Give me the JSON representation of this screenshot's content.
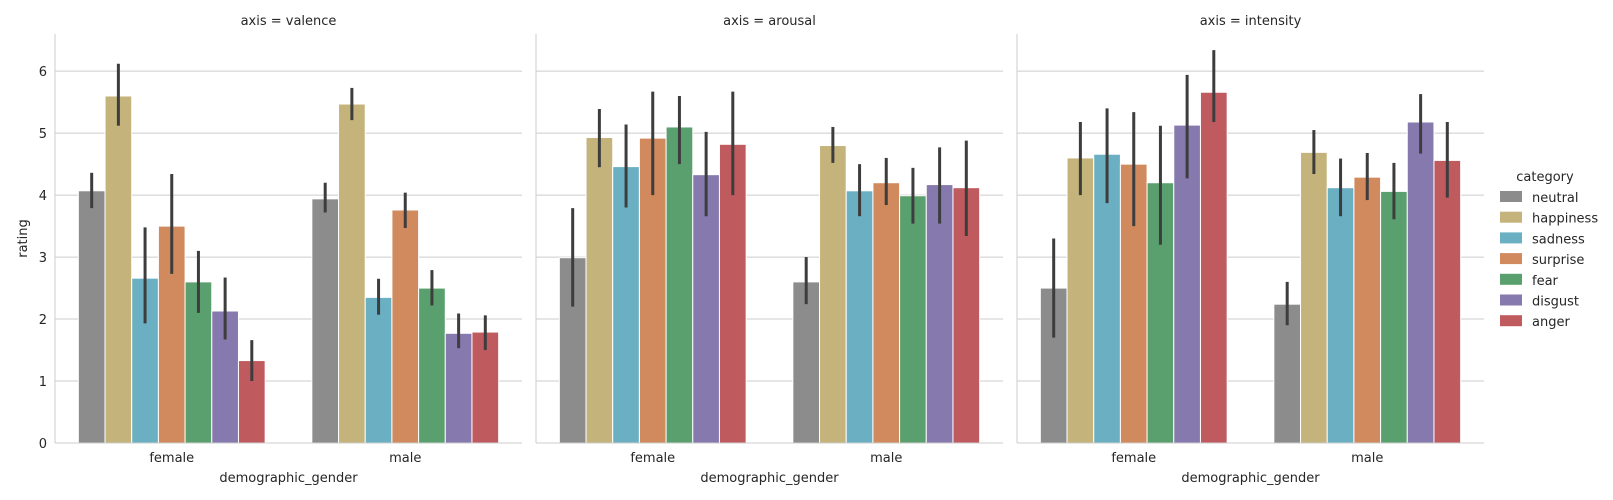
{
  "chart_data": {
    "type": "bar",
    "ylabel": "rating",
    "xlabel": "demographic_gender",
    "ylim": [
      0,
      6.6
    ],
    "yticks": [
      0,
      1,
      2,
      3,
      4,
      5,
      6
    ],
    "grid": "horizontal",
    "categories": [
      "female",
      "male"
    ],
    "legend": {
      "title": "category",
      "placement": "right",
      "entries": [
        "neutral",
        "happiness",
        "sadness",
        "surprise",
        "fear",
        "disgust",
        "anger"
      ]
    },
    "colors": {
      "neutral": "#8c8c8c",
      "happiness": "#c4b47c",
      "sadness": "#6aafc2",
      "surprise": "#d08a5e",
      "fear": "#5aa06e",
      "disgust": "#8679ae",
      "anger": "#bf5a5f"
    },
    "panels": [
      {
        "title": "axis = valence",
        "series": [
          {
            "name": "neutral",
            "values": [
              4.07,
              3.94
            ],
            "err_low": [
              3.79,
              3.72
            ],
            "err_high": [
              4.36,
              4.2
            ]
          },
          {
            "name": "happiness",
            "values": [
              5.6,
              5.47
            ],
            "err_low": [
              5.12,
              5.21
            ],
            "err_high": [
              6.12,
              5.73
            ]
          },
          {
            "name": "sadness",
            "values": [
              2.66,
              2.35
            ],
            "err_low": [
              1.93,
              2.07
            ],
            "err_high": [
              3.48,
              2.65
            ]
          },
          {
            "name": "surprise",
            "values": [
              3.5,
              3.76
            ],
            "err_low": [
              2.73,
              3.47
            ],
            "err_high": [
              4.34,
              4.04
            ]
          },
          {
            "name": "fear",
            "values": [
              2.6,
              2.5
            ],
            "err_low": [
              2.1,
              2.22
            ],
            "err_high": [
              3.1,
              2.79
            ]
          },
          {
            "name": "disgust",
            "values": [
              2.13,
              1.77
            ],
            "err_low": [
              1.67,
              1.53
            ],
            "err_high": [
              2.67,
              2.09
            ]
          },
          {
            "name": "anger",
            "values": [
              1.33,
              1.79
            ],
            "err_low": [
              1.0,
              1.5
            ],
            "err_high": [
              1.66,
              2.06
            ]
          }
        ]
      },
      {
        "title": "axis = arousal",
        "series": [
          {
            "name": "neutral",
            "values": [
              2.99,
              2.6
            ],
            "err_low": [
              2.2,
              2.24
            ],
            "err_high": [
              3.79,
              3.0
            ]
          },
          {
            "name": "happiness",
            "values": [
              4.93,
              4.8
            ],
            "err_low": [
              4.45,
              4.52
            ],
            "err_high": [
              5.39,
              5.1
            ]
          },
          {
            "name": "sadness",
            "values": [
              4.46,
              4.07
            ],
            "err_low": [
              3.8,
              3.66
            ],
            "err_high": [
              5.14,
              4.5
            ]
          },
          {
            "name": "surprise",
            "values": [
              4.92,
              4.2
            ],
            "err_low": [
              4.0,
              3.84
            ],
            "err_high": [
              5.67,
              4.6
            ]
          },
          {
            "name": "fear",
            "values": [
              5.1,
              3.99
            ],
            "err_low": [
              4.5,
              3.54
            ],
            "err_high": [
              5.6,
              4.44
            ]
          },
          {
            "name": "disgust",
            "values": [
              4.33,
              4.17
            ],
            "err_low": [
              3.66,
              3.54
            ],
            "err_high": [
              5.02,
              4.77
            ]
          },
          {
            "name": "anger",
            "values": [
              4.82,
              4.12
            ],
            "err_low": [
              4.0,
              3.34
            ],
            "err_high": [
              5.67,
              4.88
            ]
          }
        ]
      },
      {
        "title": "axis = intensity",
        "series": [
          {
            "name": "neutral",
            "values": [
              2.5,
              2.24
            ],
            "err_low": [
              1.7,
              1.9
            ],
            "err_high": [
              3.3,
              2.6
            ]
          },
          {
            "name": "happiness",
            "values": [
              4.6,
              4.69
            ],
            "err_low": [
              4.0,
              4.34
            ],
            "err_high": [
              5.18,
              5.05
            ]
          },
          {
            "name": "sadness",
            "values": [
              4.66,
              4.12
            ],
            "err_low": [
              3.87,
              3.66
            ],
            "err_high": [
              5.4,
              4.59
            ]
          },
          {
            "name": "surprise",
            "values": [
              4.5,
              4.29
            ],
            "err_low": [
              3.5,
              3.92
            ],
            "err_high": [
              5.34,
              4.68
            ]
          },
          {
            "name": "fear",
            "values": [
              4.2,
              4.06
            ],
            "err_low": [
              3.2,
              3.61
            ],
            "err_high": [
              5.12,
              4.52
            ]
          },
          {
            "name": "disgust",
            "values": [
              5.13,
              5.18
            ],
            "err_low": [
              4.27,
              4.67
            ],
            "err_high": [
              5.94,
              5.63
            ]
          },
          {
            "name": "anger",
            "values": [
              5.66,
              4.56
            ],
            "err_low": [
              5.18,
              3.96
            ],
            "err_high": [
              6.34,
              5.18
            ]
          }
        ]
      }
    ]
  }
}
